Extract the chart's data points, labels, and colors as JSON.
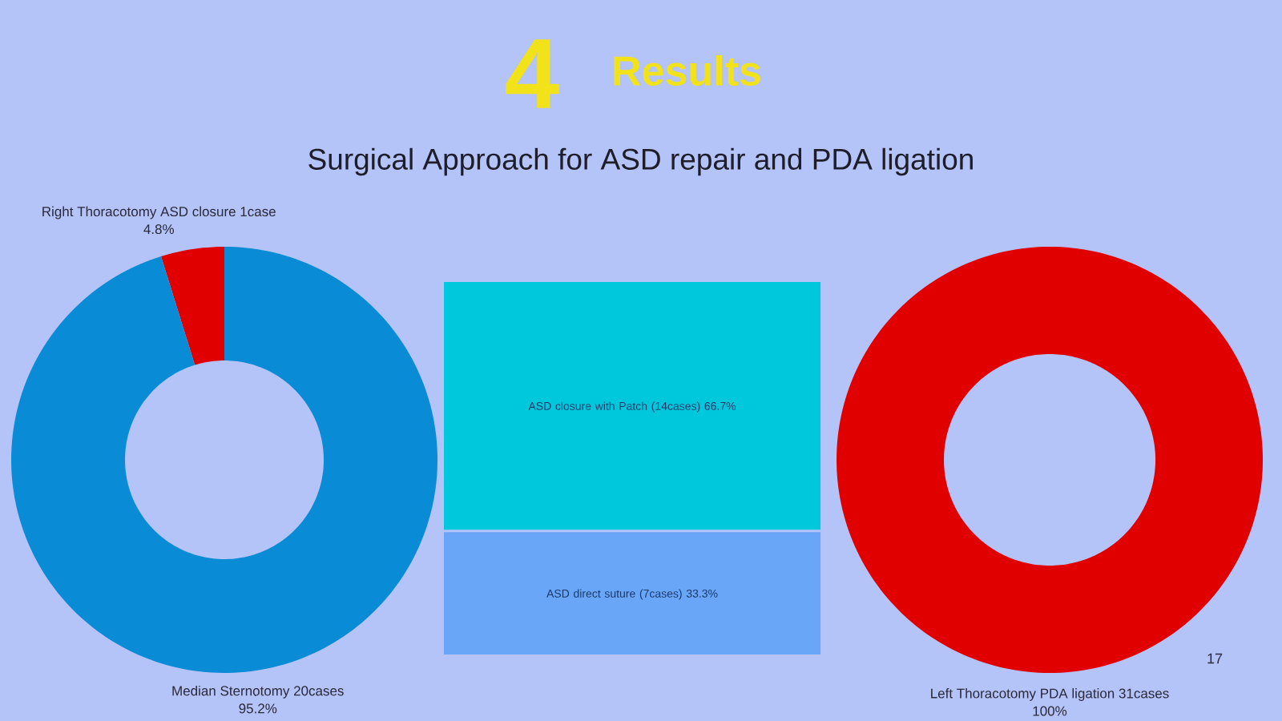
{
  "chart_data": [
    {
      "type": "donut",
      "title": "Results",
      "subtitle": "Surgical Approach for ASD repair and PDA ligation",
      "annotations": [
        "4"
      ],
      "categories": [
        "Right Thoracotomy ASD closure 1case",
        "Median Sternotomy 20cases"
      ],
      "values": [
        4.8,
        95.2
      ],
      "value_labels": [
        "4.8%",
        "95.2%"
      ],
      "colors": [
        "#e00000",
        "#0a8bd6"
      ]
    },
    {
      "type": "other",
      "categories": [
        "ASD closure with Patch (14cases)",
        "ASD direct suture (7cases)"
      ],
      "values": [
        66.7,
        33.3
      ],
      "value_labels": [
        "66.7%",
        "33.3%"
      ],
      "colors": [
        "#00c8dc",
        "#6aa6f8"
      ]
    },
    {
      "type": "donut",
      "annotations": [
        "17"
      ],
      "categories": [
        "Left Thoracotomy PDA ligation 31cases"
      ],
      "values": [
        100
      ],
      "value_labels": [
        "100%"
      ],
      "colors": [
        "#e00000"
      ]
    }
  ]
}
